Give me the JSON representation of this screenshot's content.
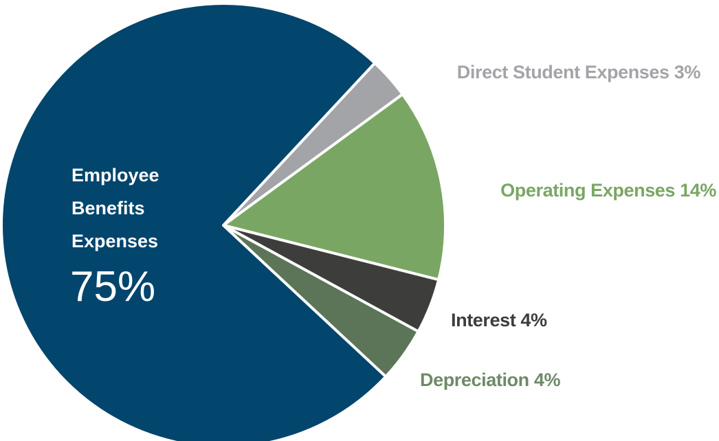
{
  "chart_data": {
    "type": "pie",
    "start_angle_deg": -47,
    "slices": [
      {
        "key": "direct-student",
        "label": "Direct Student Expenses",
        "pct_text": "3%",
        "value": 3,
        "color": "#a2a4a7",
        "text_color": "#a2a4a7"
      },
      {
        "key": "operating",
        "label": "Operating Expenses",
        "pct_text": "14%",
        "value": 14,
        "color": "#7aa664",
        "text_color": "#7aa664"
      },
      {
        "key": "interest",
        "label": "Interest",
        "pct_text": "4%",
        "value": 4,
        "color": "#3d3d3b",
        "text_color": "#3d3d3b"
      },
      {
        "key": "depreciation",
        "label": "Depreciation",
        "pct_text": "4%",
        "value": 4,
        "color": "#5c7559",
        "text_color": "#6e8a68"
      },
      {
        "key": "employee-benefits",
        "label_lines": [
          "Employee",
          "Benefits",
          "Expenses"
        ],
        "pct_text": "75%",
        "value": 75,
        "color": "#02456d",
        "text_color": "#ffffff"
      }
    ]
  }
}
